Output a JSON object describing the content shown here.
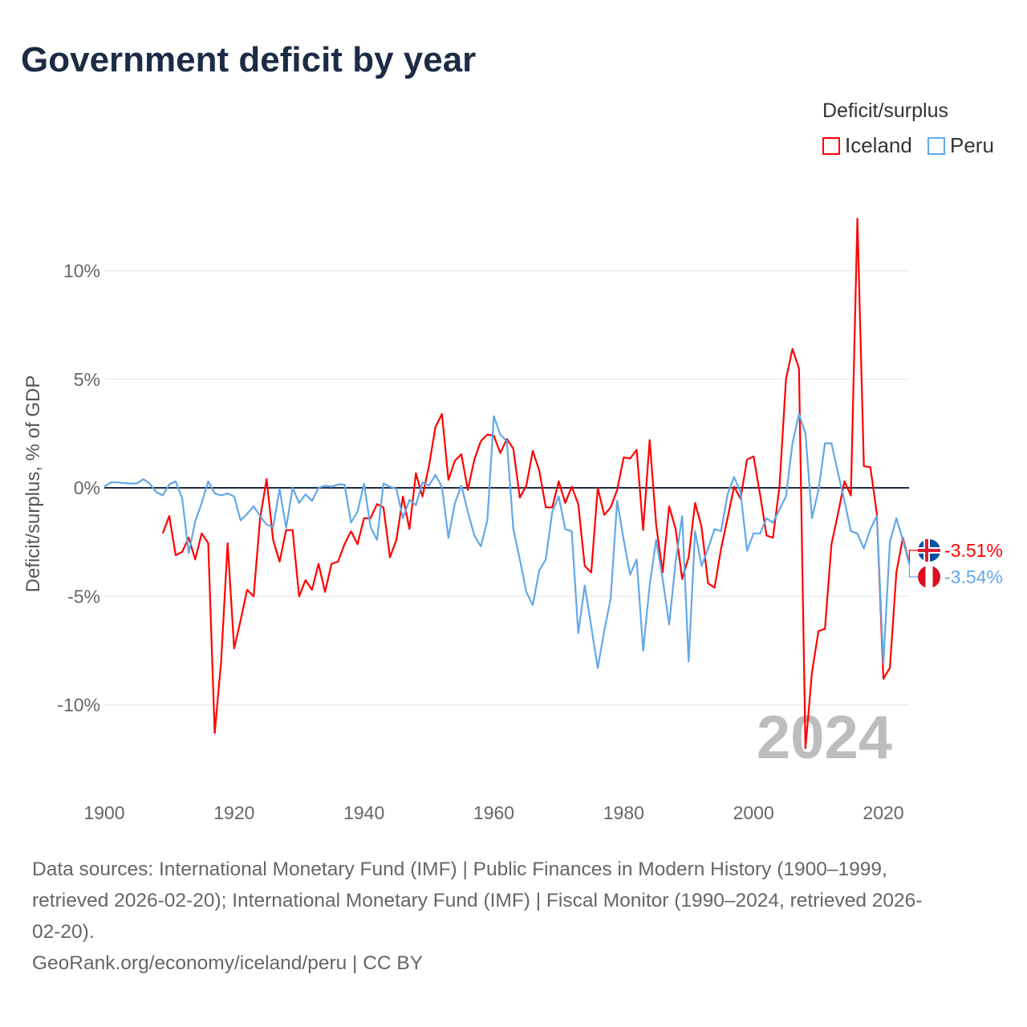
{
  "chart_data": {
    "type": "line",
    "title": "Government deficit by year",
    "xlabel": "",
    "ylabel": "Deficit/surplus, % of GDP",
    "xlim": [
      1900,
      2024
    ],
    "ylim": [
      -13,
      13
    ],
    "xticks": [
      1900,
      1920,
      1940,
      1960,
      1980,
      2000,
      2020
    ],
    "yticks": [
      -10,
      -5,
      0,
      5,
      10
    ],
    "ytick_labels": [
      "-10%",
      "-5%",
      "0%",
      "5%",
      "10%"
    ],
    "grid": true,
    "legend_title": "Deficit/surplus",
    "legend_position": "top-right",
    "watermark_year": "2024",
    "series": [
      {
        "name": "Iceland",
        "color": "#ff0000",
        "start_year": 1909,
        "end_label": "-3.51%",
        "values": [
          -2.1,
          -1.3,
          -3.1,
          -2.95,
          -2.3,
          -3.3,
          -2.1,
          -2.55,
          -11.3,
          -8.0,
          -2.55,
          -7.4,
          -6.1,
          -4.7,
          -5.0,
          -1.4,
          0.4,
          -2.4,
          -3.4,
          -1.95,
          -1.95,
          -5.0,
          -4.25,
          -4.7,
          -3.5,
          -4.8,
          -3.5,
          -3.4,
          -2.6,
          -2.0,
          -2.6,
          -1.4,
          -1.4,
          -0.75,
          -0.9,
          -3.2,
          -2.4,
          -0.4,
          -1.9,
          0.67,
          -0.4,
          1.0,
          2.8,
          3.4,
          0.37,
          1.25,
          1.55,
          -0.1,
          1.3,
          2.15,
          2.45,
          2.4,
          1.6,
          2.25,
          1.8,
          -0.45,
          0.1,
          1.7,
          0.8,
          -0.9,
          -0.9,
          0.3,
          -0.7,
          0.05,
          -0.75,
          -3.6,
          -3.9,
          0,
          -1.25,
          -0.9,
          -0.1,
          1.4,
          1.35,
          1.75,
          -1.95,
          2.2,
          -1.7,
          -3.9,
          -0.85,
          -1.9,
          -4.2,
          -3.2,
          -0.7,
          -1.8,
          -4.4,
          -4.6,
          -2.8,
          -1.4,
          0.05,
          -0.5,
          1.3,
          1.45,
          -0.3,
          -2.2,
          -2.3,
          0.05,
          5.0,
          6.4,
          5.5,
          -12.0,
          -8.5,
          -6.6,
          -6.5,
          -2.6,
          -1.2,
          0.3,
          -0.35,
          12.4,
          1.0,
          0.95,
          -1.2,
          -8.8,
          -8.3,
          -3.9,
          -2.3,
          -3.51
        ]
      },
      {
        "name": "Peru",
        "color": "#62a8e8",
        "start_year": 1900,
        "end_label": "-3.54%",
        "values": [
          0.05,
          0.25,
          0.25,
          0.22,
          0.2,
          0.2,
          0.4,
          0.2,
          -0.2,
          -0.35,
          0.15,
          0.3,
          -0.5,
          -3.0,
          -1.55,
          -0.7,
          0.3,
          -0.25,
          -0.35,
          -0.25,
          -0.4,
          -1.5,
          -1.2,
          -0.85,
          -1.3,
          -1.7,
          -1.8,
          -0.05,
          -1.85,
          0,
          -0.7,
          -0.3,
          -0.6,
          0,
          0.1,
          0.05,
          0.15,
          0.15,
          -1.6,
          -1.1,
          0.2,
          -1.8,
          -2.4,
          0.2,
          0.05,
          -0.05,
          -1.4,
          -0.55,
          -0.8,
          0.25,
          0.1,
          0.6,
          0.05,
          -2.3,
          -0.7,
          0.1,
          -1.1,
          -2.2,
          -2.7,
          -1.5,
          3.3,
          2.45,
          2.15,
          -1.9,
          -3.3,
          -4.8,
          -5.4,
          -3.8,
          -3.3,
          -1.1,
          -0.4,
          -1.9,
          -2.0,
          -6.7,
          -4.5,
          -6.4,
          -8.3,
          -6.6,
          -5.1,
          -0.6,
          -2.4,
          -4.0,
          -3.3,
          -7.5,
          -4.5,
          -2.4,
          -4.2,
          -6.3,
          -3.4,
          -1.3,
          -8.0,
          -2.0,
          -3.6,
          -2.8,
          -1.9,
          -2.0,
          -0.3,
          0.5,
          -0.2,
          -2.9,
          -2.1,
          -2.1,
          -1.4,
          -1.6,
          -1.0,
          -0.4,
          2.05,
          3.4,
          2.5,
          -1.4,
          -0.1,
          2.05,
          2.05,
          0.7,
          -0.6,
          -2.0,
          -2.1,
          -2.8,
          -1.9,
          -1.3,
          -8.1,
          -2.5,
          -1.4,
          -2.4,
          -3.54
        ]
      }
    ]
  },
  "footer": {
    "line1": "Data sources: International Monetary Fund (IMF) | Public Finances in Modern History (1900–1999,",
    "line2": "retrieved 2026-02-20); International Monetary Fund (IMF) | Fiscal Monitor (1990–2024, retrieved 2026-",
    "line3": "02-20).",
    "line4": "GeoRank.org/economy/iceland/peru | CC BY"
  }
}
